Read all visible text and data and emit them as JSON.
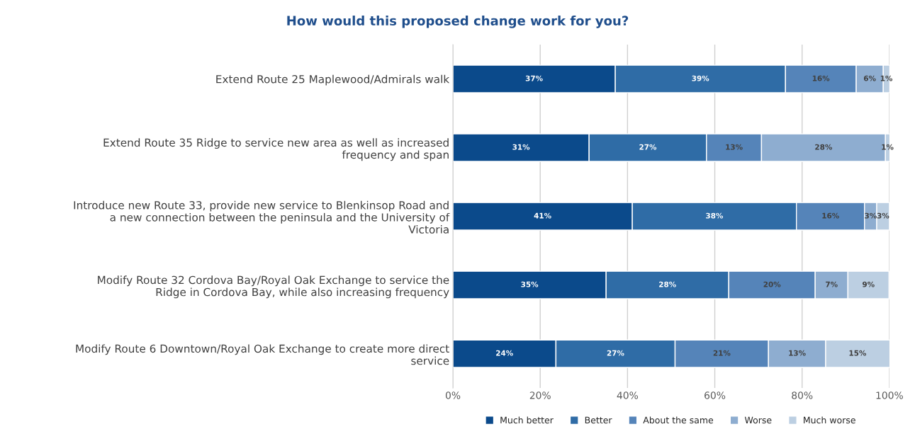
{
  "chart_data": {
    "type": "bar",
    "orientation": "horizontal",
    "stacked": true,
    "title": "How would this proposed change work for you?",
    "categories": [
      "Extend Route 25 Maplewood/Admirals walk",
      "Extend Route 35 Ridge to service new area as well as increased frequency and span",
      "Introduce new Route 33, provide new service to Blenkinsop Road and a new connection between the peninsula and the University of Victoria",
      "Modify Route 32 Cordova Bay/Royal Oak Exchange to service the Ridge in Cordova Bay, while also increasing frequency",
      "Modify Route 6 Downtown/Royal Oak Exchange to create more direct service"
    ],
    "series": [
      {
        "name": "Much better",
        "color": "#0b4a8b",
        "values": [
          37.2,
          31.2,
          41.1,
          35.1,
          23.6
        ],
        "value_labels": [
          "37%",
          "31%",
          "41%",
          "35%",
          "24%"
        ]
      },
      {
        "name": "Better",
        "color": "#2f6ca6",
        "values": [
          39.0,
          26.9,
          37.6,
          28.1,
          27.3
        ],
        "value_labels": [
          "39%",
          "27%",
          "38%",
          "28%",
          "27%"
        ]
      },
      {
        "name": "About the same",
        "color": "#5584b9",
        "values": [
          16.2,
          12.6,
          15.6,
          19.8,
          21.4
        ],
        "value_labels": [
          "16%",
          "13%",
          "16%",
          "20%",
          "21%"
        ]
      },
      {
        "name": "Worse",
        "color": "#8eadd0",
        "values": [
          6.2,
          28.4,
          2.8,
          7.5,
          13.1
        ],
        "value_labels": [
          "6%",
          "28%",
          "3%",
          "7%",
          "13%"
        ]
      },
      {
        "name": "Much worse",
        "color": "#bccfe2",
        "values": [
          1.5,
          1.3,
          2.9,
          9.4,
          14.8
        ],
        "value_labels": [
          "1%",
          "1%",
          "3%",
          "9%",
          "15%"
        ]
      }
    ],
    "xlim": [
      0,
      100
    ],
    "xticks": [
      {
        "value": 0,
        "label": "0%"
      },
      {
        "value": 20,
        "label": "20%"
      },
      {
        "value": 40,
        "label": "40%"
      },
      {
        "value": 60,
        "label": "60%"
      },
      {
        "value": 80,
        "label": "80%"
      },
      {
        "value": 100,
        "label": "100%"
      }
    ],
    "grid": "x",
    "legend": "bottom"
  }
}
